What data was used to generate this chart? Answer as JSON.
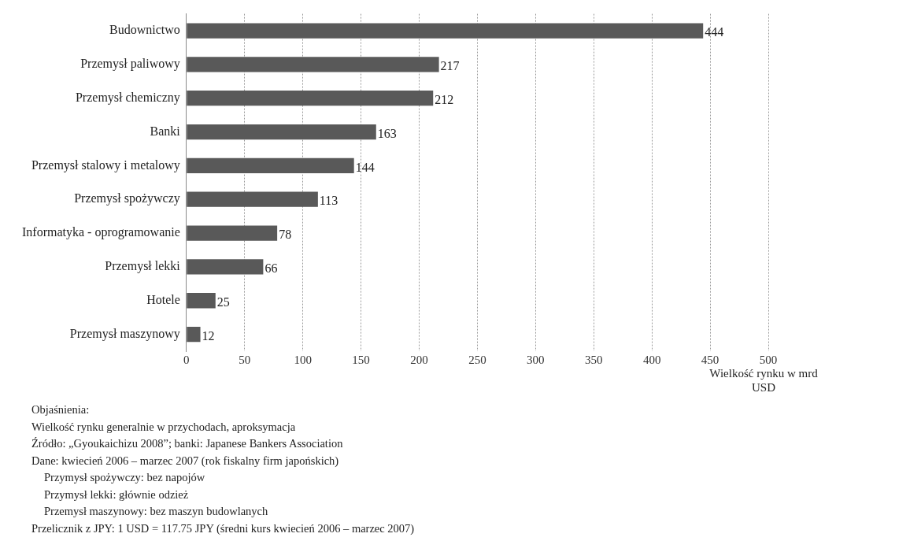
{
  "chart_data": {
    "type": "bar",
    "orientation": "horizontal",
    "categories": [
      "Budownictwo",
      "Przemysł paliwowy",
      "Przemysł chemiczny",
      "Banki",
      "Przemysł stalowy i metalowy",
      "Przemysł spożywczy",
      "Informatyka - oprogramowanie",
      "Przemysł lekki",
      "Hotele",
      "Przemysł maszynowy"
    ],
    "values": [
      444,
      217,
      212,
      163,
      144,
      113,
      78,
      66,
      25,
      12
    ],
    "color": "#595959",
    "xlim": [
      0,
      500
    ],
    "xticks": [
      0,
      50,
      100,
      150,
      200,
      250,
      300,
      350,
      400,
      450,
      500
    ],
    "xlabel": "Wielkość rynku w mrd USD",
    "grid": "x",
    "data_labels": true,
    "annotations": [
      "Objaśnienia:",
      "Wielkość rynku generalnie w przychodach, aproksymacja",
      "Źródło: „Gyoukaichizu 2008”; banki: Japanese Bankers Association",
      "Dane: kwiecień 2006 – marzec 2007 (rok fiskalny firm japońskich)",
      "Przymysł spożywczy: bez napojów",
      "Przymysł lekki: głównie odzież",
      "Przemysł maszynowy: bez maszyn budowlanych",
      "Przelicznik z JPY: 1 USD = 117.75 JPY (średni kurs kwiecień 2006 – marzec 2007)"
    ]
  }
}
